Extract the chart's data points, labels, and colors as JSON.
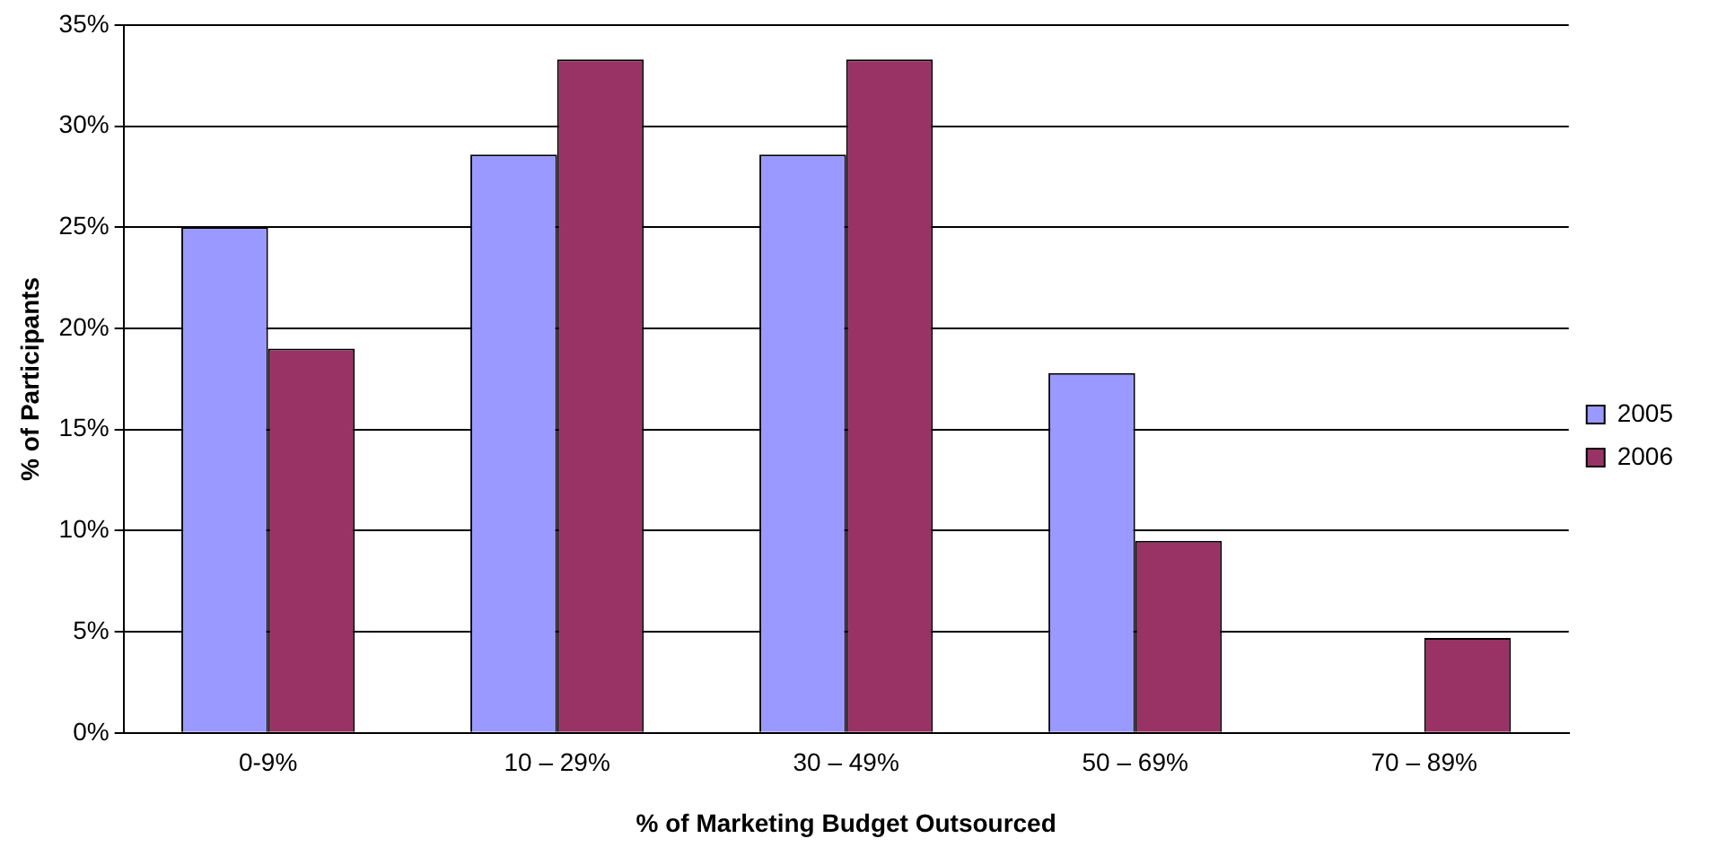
{
  "chart_data": {
    "type": "bar",
    "xlabel": "% of Marketing Budget Outsourced",
    "ylabel": "% of Participants",
    "categories": [
      "0-9%",
      "10 – 29%",
      "30 – 49%",
      "50 – 69%",
      "70 – 89%"
    ],
    "series": [
      {
        "name": "2005",
        "color": "#9999ff",
        "values": [
          25,
          28.6,
          28.6,
          17.8,
          0
        ]
      },
      {
        "name": "2006",
        "color": "#993366",
        "values": [
          19,
          33.3,
          33.3,
          9.5,
          4.7
        ]
      }
    ],
    "ylim": [
      0,
      35
    ],
    "yticks": [
      {
        "value": 0,
        "label": "0%"
      },
      {
        "value": 5,
        "label": "5%"
      },
      {
        "value": 10,
        "label": "10%"
      },
      {
        "value": 15,
        "label": "15%"
      },
      {
        "value": 20,
        "label": "20%"
      },
      {
        "value": 25,
        "label": "25%"
      },
      {
        "value": 30,
        "label": "30%"
      },
      {
        "value": 35,
        "label": "35%"
      }
    ],
    "grid": "y",
    "legend": "right"
  }
}
